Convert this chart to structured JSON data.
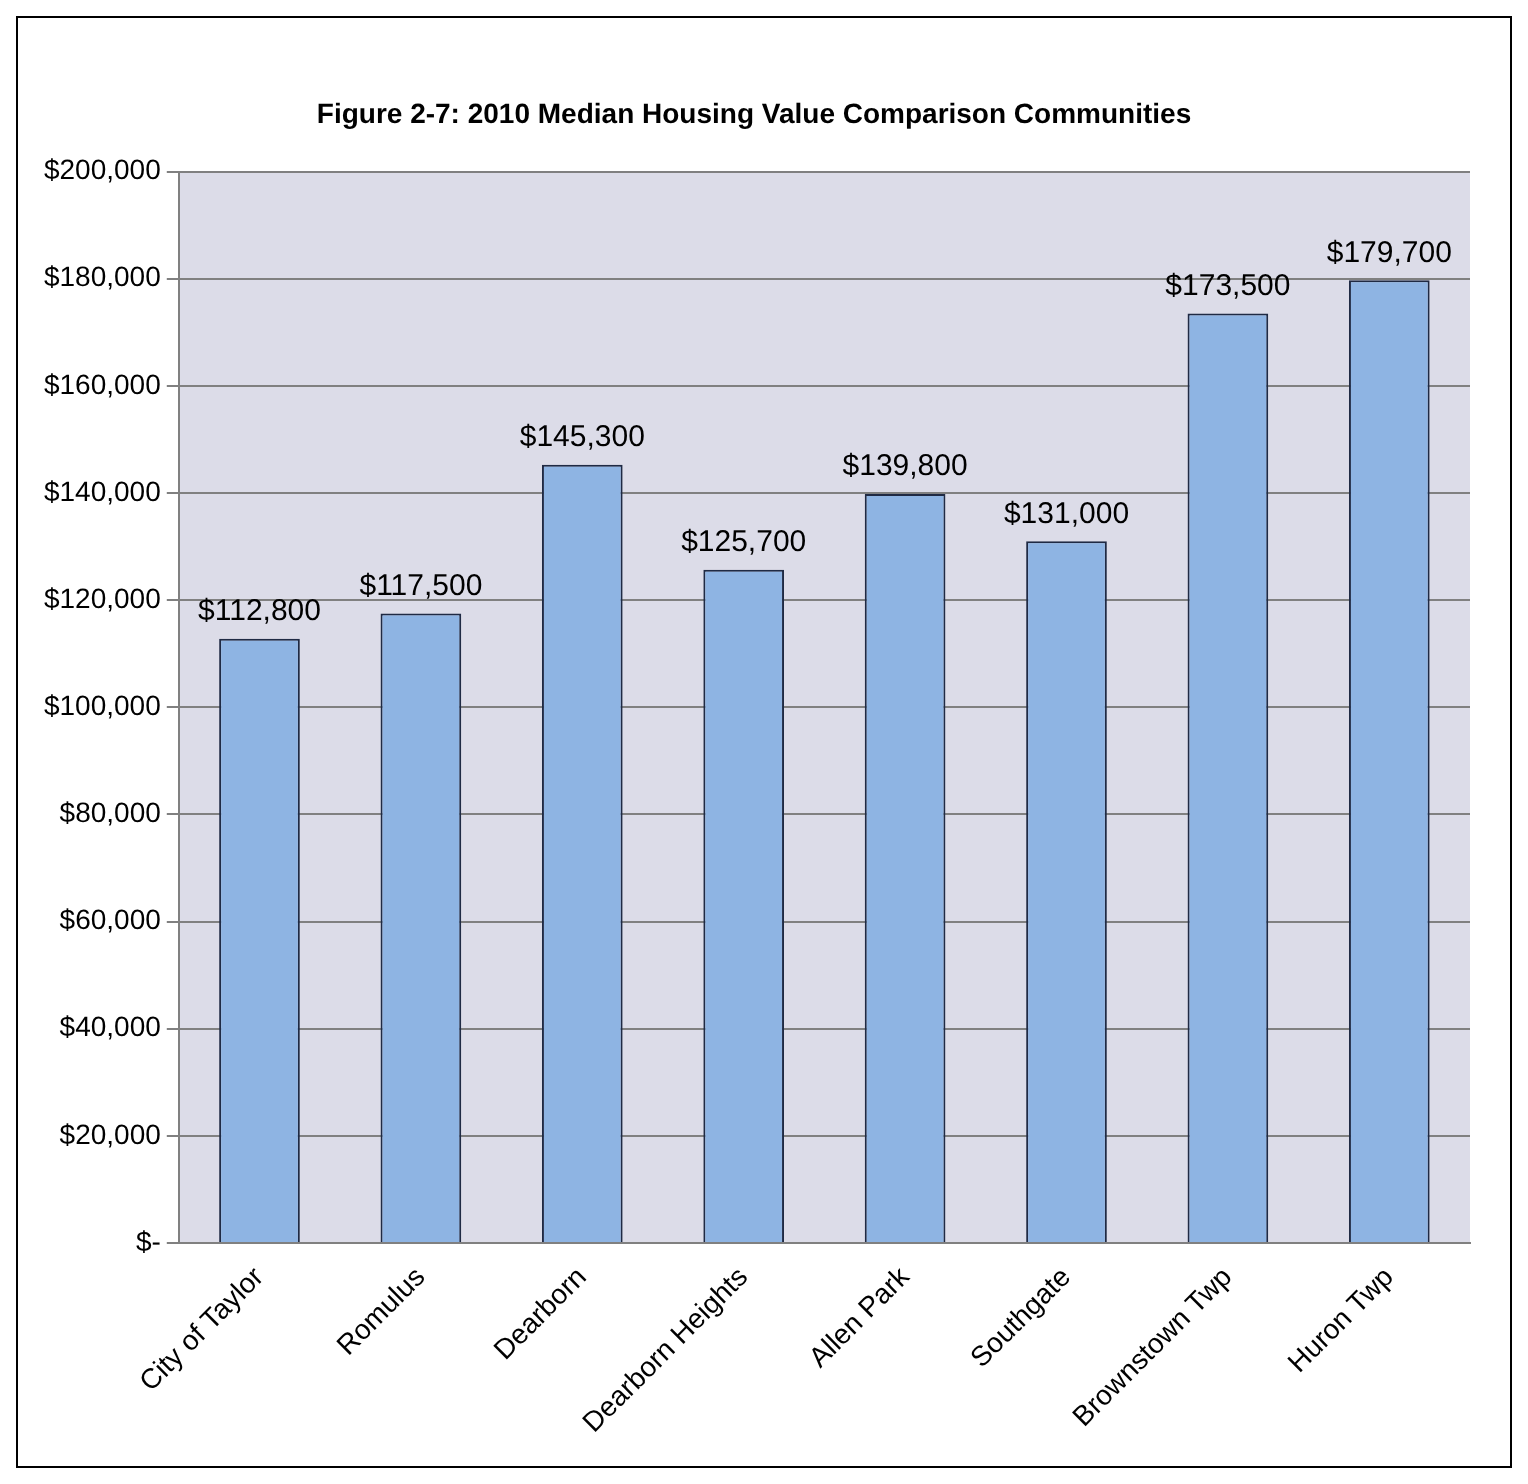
{
  "chart_data": {
    "type": "bar",
    "title": "Figure 2-7: 2010 Median Housing Value Comparison Communities",
    "categories": [
      "City of Taylor",
      "Romulus",
      "Dearborn",
      "Dearborn Heights",
      "Allen Park",
      "Southgate",
      "Brownstown Twp",
      "Huron Twp"
    ],
    "values": [
      112800,
      117500,
      145300,
      125700,
      139800,
      131000,
      173500,
      179700
    ],
    "value_labels": [
      "$112,800",
      "$117,500",
      "$145,300",
      "$125,700",
      "$139,800",
      "$131,000",
      "$173,500",
      "$179,700"
    ],
    "color": "#8eb4e3",
    "ylim": [
      0,
      200000
    ],
    "yticks": [
      {
        "value": 0,
        "label": "$-"
      },
      {
        "value": 20000,
        "label": "$20,000"
      },
      {
        "value": 40000,
        "label": "$40,000"
      },
      {
        "value": 60000,
        "label": "$60,000"
      },
      {
        "value": 80000,
        "label": "$80,000"
      },
      {
        "value": 100000,
        "label": "$100,000"
      },
      {
        "value": 120000,
        "label": "$120,000"
      },
      {
        "value": 140000,
        "label": "$140,000"
      },
      {
        "value": 160000,
        "label": "$160,000"
      },
      {
        "value": 180000,
        "label": "$180,000"
      },
      {
        "value": 200000,
        "label": "$200,000"
      }
    ],
    "grid": "y",
    "legend": false
  }
}
